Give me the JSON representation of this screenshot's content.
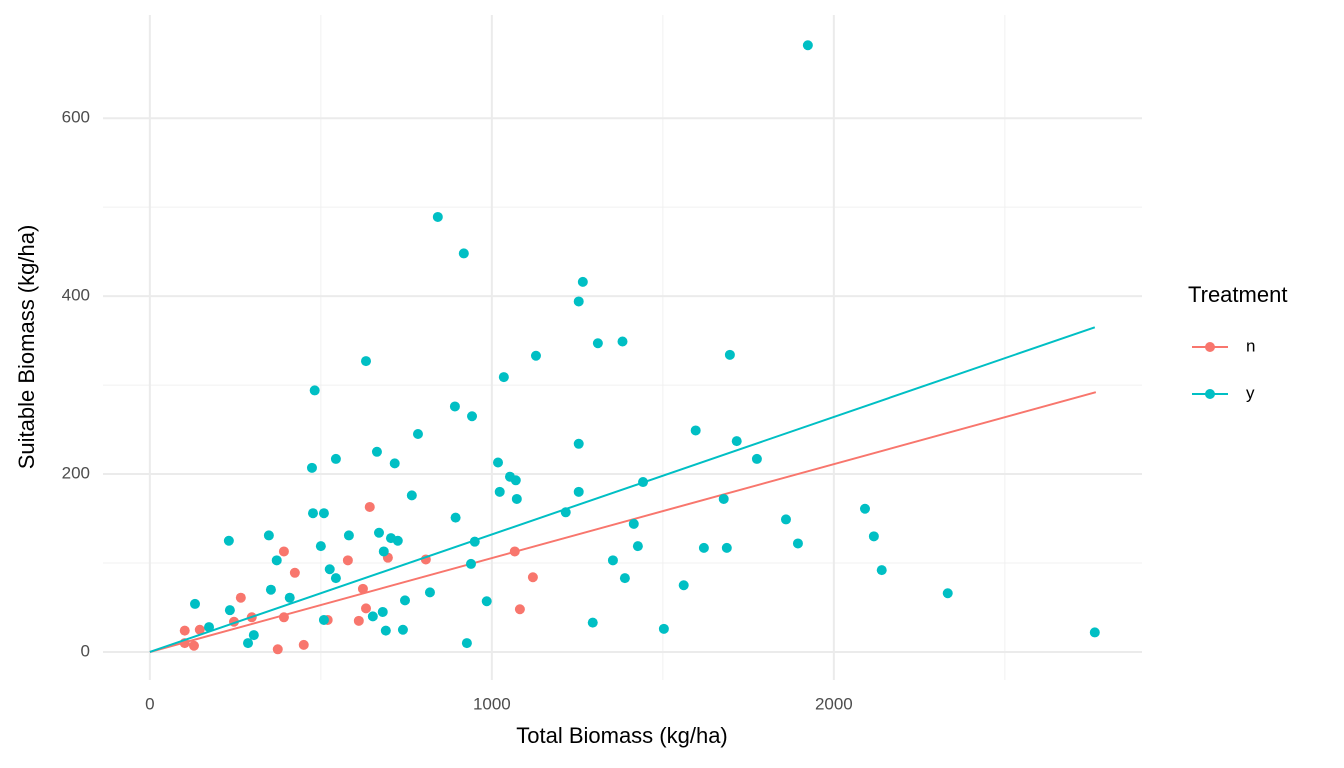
{
  "chart_data": {
    "type": "scatter",
    "x_label": "Total Biomass (kg/ha)",
    "y_label": "Suitable Biomass (kg/ha)",
    "legend_title": "Treatment",
    "legend": "right",
    "grid": true,
    "xlim": [
      -137,
      2901
    ],
    "ylim": [
      -31.5,
      716
    ],
    "xticks": [
      0,
      1000,
      2000
    ],
    "yticks": [
      0,
      200,
      400,
      600
    ],
    "xminor": [
      500,
      1500,
      2500
    ],
    "yminor": [
      100,
      300,
      500
    ],
    "series": [
      {
        "name": "n",
        "color": "#F8766D",
        "x": [
          102,
          102,
          129,
          146,
          266,
          246,
          298,
          374,
          392,
          392,
          424,
          450,
          520,
          579,
          611,
          623,
          632,
          643,
          696,
          807,
          1067,
          1082,
          1120
        ],
        "values": [
          24,
          10,
          7,
          25,
          61,
          34,
          39,
          3,
          113,
          39,
          89,
          8,
          36,
          103,
          35,
          71,
          49,
          163,
          106,
          104,
          113,
          48,
          84
        ],
        "fit_x": [
          0,
          2766
        ],
        "fit_values": [
          0,
          292
        ]
      },
      {
        "name": "y",
        "color": "#00BFC4",
        "x": [
          132,
          173,
          231,
          234,
          287,
          304,
          348,
          354,
          371,
          409,
          474,
          477,
          482,
          500,
          509,
          509,
          526,
          544,
          544,
          582,
          632,
          652,
          664,
          670,
          681,
          684,
          690,
          705,
          716,
          725,
          740,
          746,
          766,
          784,
          819,
          842,
          892,
          894,
          918,
          927,
          939,
          942,
          950,
          985,
          1018,
          1023,
          1035,
          1053,
          1070,
          1073,
          1129,
          1216,
          1254,
          1254,
          1254,
          1266,
          1295,
          1310,
          1354,
          1382,
          1389,
          1415,
          1427,
          1442,
          1503,
          1561,
          1596,
          1620,
          1678,
          1687,
          1696,
          1716,
          1775,
          1860,
          1895,
          1924,
          2091,
          2117,
          2140,
          2333,
          2763
        ],
        "values": [
          54,
          28,
          125,
          47,
          10,
          19,
          131,
          70,
          103,
          61,
          207,
          156,
          294,
          119,
          156,
          36,
          93,
          217,
          83,
          131,
          327,
          40,
          225,
          134,
          45,
          113,
          24,
          128,
          212,
          125,
          25,
          58,
          176,
          245,
          67,
          489,
          276,
          151,
          448,
          10,
          99,
          265,
          124,
          57,
          213,
          180,
          309,
          197,
          193,
          172,
          333,
          157,
          394,
          234,
          180,
          416,
          33,
          347,
          103,
          349,
          83,
          144,
          119,
          191,
          26,
          75,
          249,
          117,
          172,
          117,
          334,
          237,
          217,
          149,
          122,
          682,
          161,
          130,
          92,
          66,
          22
        ],
        "fit_x": [
          0,
          2763
        ],
        "fit_values": [
          0,
          365
        ]
      }
    ]
  }
}
